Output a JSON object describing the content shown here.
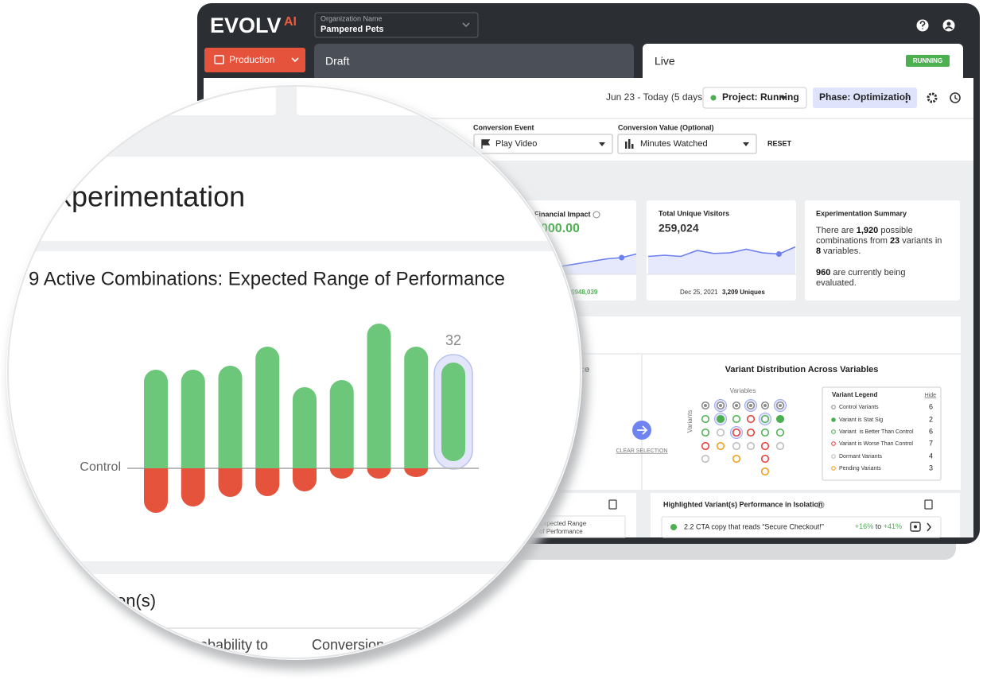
{
  "header": {
    "logo": "EVOLV",
    "logo_suffix": "AI",
    "org_label": "Organization Name",
    "org_name": "Pampered Pets"
  },
  "tabs": {
    "environment": "Production",
    "draft": "Draft",
    "live": "Live",
    "live_status": "RUNNING"
  },
  "toolbar": {
    "date_range": "Jun 23 - Today (5 days)",
    "project": "Project: Running",
    "phase": "Phase: Optimization"
  },
  "filters": {
    "event_label": "Conversion Event",
    "event_value": "Play Video",
    "value_label": "Conversion Value (Optional)",
    "value_value": "Minutes Watched",
    "reset": "RESET"
  },
  "cards": {
    "financial": {
      "title": "Financial Impact",
      "value": "000.00",
      "footer": "$948,039",
      "sparkline": {
        "values": [
          8,
          14,
          18,
          22,
          26,
          28,
          34
        ],
        "ylim": [
          0,
          60
        ],
        "highlight_index": 5
      }
    },
    "visitors": {
      "title": "Total Unique Visitors",
      "value": "259,024",
      "footer_date": "Dec 25, 2021",
      "footer_value": "3,209 Uniques",
      "sparkline": {
        "values": [
          30,
          32,
          30,
          40,
          35,
          36,
          42,
          36,
          34,
          46
        ],
        "ylim": [
          0,
          60
        ],
        "highlight_index": 8
      }
    }
  },
  "summary": {
    "title": "Experimentation Summary",
    "lines": [
      [
        {
          "text": "There are "
        },
        {
          "text": "1,920",
          "bold": true
        },
        {
          "text": " possible"
        }
      ],
      [
        {
          "text": "combinations from "
        },
        {
          "text": "23",
          "bold": true
        },
        {
          "text": " variants in"
        }
      ],
      [
        {
          "text": "8",
          "bold": true
        },
        {
          "text": " variables."
        }
      ],
      [
        {
          "text": "960",
          "bold": true
        },
        {
          "text": " are currently being"
        }
      ],
      [
        {
          "text": "evaluated."
        }
      ]
    ]
  },
  "performance_title": "ance",
  "distribution": {
    "title": "Variant Distribution Across Variables",
    "x_label": "Variables",
    "y_label": "Variants",
    "clear": "CLEAR SELECTION",
    "legend": {
      "title": "Variant Legend",
      "hide": "Hide",
      "items": [
        {
          "label": "Control Variants",
          "count": 6
        },
        {
          "label": "Variant is Stat Sig",
          "count": 2
        },
        {
          "label": "Variant  is Better Than Control",
          "count": 6
        },
        {
          "label": "Variant is Worse Than Control",
          "count": 7
        },
        {
          "label": "Dormant Variants",
          "count": 4
        },
        {
          "label": "Pending Variants",
          "count": 3
        }
      ]
    }
  },
  "isolation": {
    "title": "Highlighted Variant(s) Performance in Isolation",
    "label": "2.2 CTA copy that reads “Secure Checkout!”",
    "range_low": "+16%",
    "range_sep": " to ",
    "range_high": "+41%"
  },
  "expected_range": [
    "Expected Range",
    "of Performance"
  ],
  "magnifier": {
    "heading": "xperimentation",
    "chart_title": "9 Active Combinations: Expected Range of Performance",
    "control_label": "Control",
    "highlight_label": "32",
    "section": "tion(s)",
    "columns": [
      "robability to",
      "Conversion"
    ],
    "chart": {
      "type": "bar",
      "ylim": [
        -70,
        200
      ],
      "upper": [
        124,
        124,
        129,
        153,
        102,
        111,
        182,
        153,
        133
      ],
      "lower": [
        -56,
        -48,
        -36,
        -35,
        -29,
        -13,
        -13,
        -11,
        9
      ],
      "up_color": "#6cc77a",
      "down_color": "#e5533d",
      "highlight_index": 8
    }
  }
}
